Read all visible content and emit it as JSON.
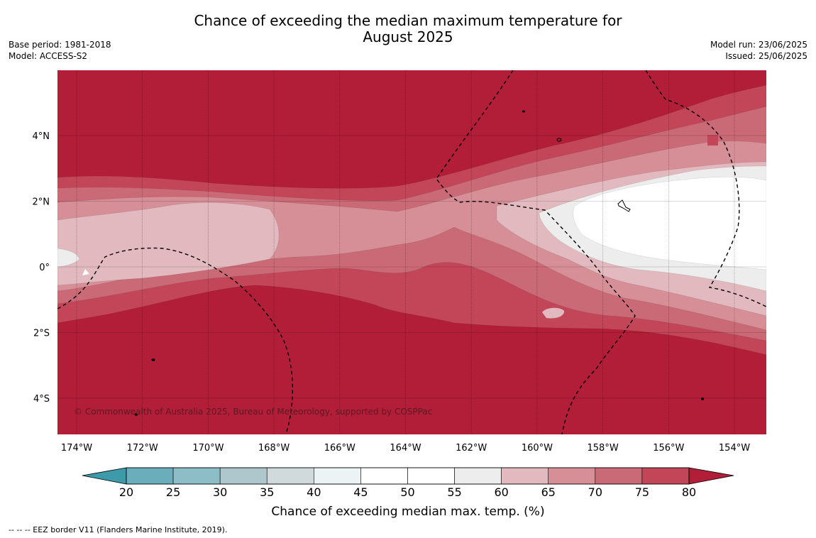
{
  "header": {
    "title_line1": "Chance of exceeding the median maximum temperature for",
    "title_line2": "August 2025",
    "base_period": "Base period: 1981-2018",
    "model": "Model: ACCESS-S2",
    "model_run": "Model run: 23/06/2025",
    "issued": "Issued: 25/06/2025"
  },
  "map": {
    "copyright": "© Commonwealth of Australia 2025, Bureau of Meteorology, supported by COSPPac",
    "lon_labels": [
      "174°W",
      "172°W",
      "170°W",
      "168°W",
      "166°W",
      "164°W",
      "162°W",
      "160°W",
      "158°W",
      "156°W",
      "154°W"
    ],
    "lat_labels": [
      "4°N",
      "2°N",
      "0°",
      "2°S",
      "4°S"
    ],
    "colors": {
      "c80": "#b21d38",
      "c75": "#c24658",
      "c70": "#ca6a76",
      "c65": "#d68e97",
      "c60": "#e1b9be",
      "c55": "#eeeded",
      "c50": "#ffffff"
    }
  },
  "colorbar": {
    "ticks": [
      "20",
      "25",
      "30",
      "35",
      "40",
      "45",
      "50",
      "55",
      "60",
      "65",
      "70",
      "75",
      "80"
    ],
    "colors": [
      "#6aaebc",
      "#8dbdc7",
      "#adc7cc",
      "#d0d9db",
      "#ebf3f4",
      "#ffffff",
      "#ffffff",
      "#eeeded",
      "#e1b9be",
      "#d68e97",
      "#ca6a76",
      "#c24658"
    ],
    "low_color": "#3d9aa9",
    "high_color": "#b21d38",
    "label": "Chance of exceeding median max. temp. (%)"
  },
  "footer": {
    "legend": "--  --  -- EEZ border V11 (Flanders Marine Institute, 2019)."
  }
}
